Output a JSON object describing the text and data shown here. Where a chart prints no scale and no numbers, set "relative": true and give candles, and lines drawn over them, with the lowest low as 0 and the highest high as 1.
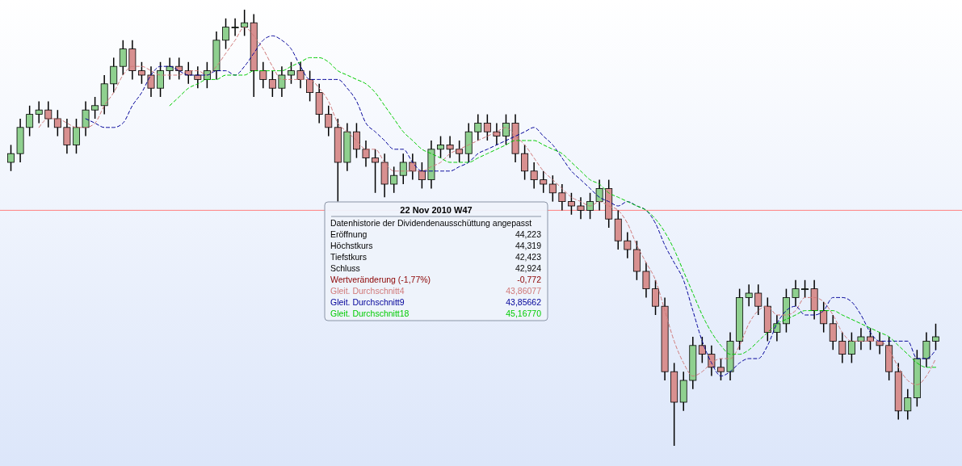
{
  "chart_data": {
    "type": "candlestick",
    "relative": true,
    "line_style": "dashed",
    "categories": [
      null,
      null,
      null,
      null,
      null,
      null,
      null,
      null,
      null,
      null,
      null,
      null,
      null,
      null,
      null,
      null,
      null,
      null,
      null,
      null,
      null,
      null,
      null,
      null,
      null,
      null,
      null,
      null,
      null,
      null,
      null,
      null,
      null,
      null,
      null,
      null,
      null,
      null,
      null,
      null,
      null,
      null,
      null,
      null,
      null,
      null,
      null,
      null,
      null,
      null,
      null,
      null,
      null,
      null,
      null,
      null,
      null,
      null,
      null,
      null,
      null,
      null,
      null,
      null,
      null,
      null,
      null,
      null,
      null,
      null,
      null,
      null,
      null,
      null,
      null,
      null,
      null,
      null,
      null,
      null,
      null,
      null,
      null,
      null,
      null,
      null,
      null,
      null,
      null,
      null,
      null,
      null,
      null,
      null,
      null,
      null,
      null,
      null,
      null,
      null
    ],
    "ohlc": [
      [
        0.65,
        0.69,
        0.63,
        0.67
      ],
      [
        0.67,
        0.75,
        0.65,
        0.73
      ],
      [
        0.73,
        0.78,
        0.71,
        0.76
      ],
      [
        0.76,
        0.79,
        0.74,
        0.77
      ],
      [
        0.77,
        0.79,
        0.73,
        0.75
      ],
      [
        0.75,
        0.77,
        0.71,
        0.73
      ],
      [
        0.73,
        0.75,
        0.67,
        0.69
      ],
      [
        0.69,
        0.75,
        0.67,
        0.73
      ],
      [
        0.73,
        0.79,
        0.71,
        0.77
      ],
      [
        0.77,
        0.8,
        0.75,
        0.78
      ],
      [
        0.78,
        0.85,
        0.76,
        0.83
      ],
      [
        0.83,
        0.89,
        0.81,
        0.87
      ],
      [
        0.87,
        0.93,
        0.85,
        0.91
      ],
      [
        0.91,
        0.93,
        0.84,
        0.86
      ],
      [
        0.86,
        0.88,
        0.83,
        0.85
      ],
      [
        0.85,
        0.87,
        0.8,
        0.82
      ],
      [
        0.82,
        0.88,
        0.8,
        0.86
      ],
      [
        0.86,
        0.89,
        0.84,
        0.87
      ],
      [
        0.87,
        0.89,
        0.84,
        0.86
      ],
      [
        0.86,
        0.88,
        0.83,
        0.85
      ],
      [
        0.85,
        0.87,
        0.82,
        0.84
      ],
      [
        0.84,
        0.88,
        0.82,
        0.86
      ],
      [
        0.86,
        0.95,
        0.84,
        0.93
      ],
      [
        0.93,
        0.98,
        0.91,
        0.96
      ],
      [
        0.96,
        0.98,
        0.94,
        0.96
      ],
      [
        0.96,
        1.0,
        0.94,
        0.97
      ],
      [
        0.97,
        0.99,
        0.8,
        0.86
      ],
      [
        0.86,
        0.88,
        0.82,
        0.84
      ],
      [
        0.84,
        0.86,
        0.8,
        0.82
      ],
      [
        0.82,
        0.87,
        0.8,
        0.85
      ],
      [
        0.85,
        0.88,
        0.83,
        0.86
      ],
      [
        0.86,
        0.88,
        0.82,
        0.84
      ],
      [
        0.84,
        0.86,
        0.79,
        0.81
      ],
      [
        0.81,
        0.83,
        0.74,
        0.76
      ],
      [
        0.76,
        0.78,
        0.71,
        0.73
      ],
      [
        0.73,
        0.75,
        0.56,
        0.65
      ],
      [
        0.65,
        0.74,
        0.63,
        0.72
      ],
      [
        0.72,
        0.74,
        0.66,
        0.68
      ],
      [
        0.68,
        0.7,
        0.64,
        0.66
      ],
      [
        0.66,
        0.68,
        0.58,
        0.65
      ],
      [
        0.65,
        0.67,
        0.57,
        0.6
      ],
      [
        0.6,
        0.64,
        0.58,
        0.62
      ],
      [
        0.62,
        0.67,
        0.6,
        0.65
      ],
      [
        0.65,
        0.67,
        0.61,
        0.63
      ],
      [
        0.63,
        0.65,
        0.59,
        0.61
      ],
      [
        0.61,
        0.7,
        0.59,
        0.68
      ],
      [
        0.68,
        0.71,
        0.66,
        0.69
      ],
      [
        0.69,
        0.71,
        0.66,
        0.68
      ],
      [
        0.68,
        0.7,
        0.65,
        0.67
      ],
      [
        0.67,
        0.74,
        0.65,
        0.72
      ],
      [
        0.72,
        0.76,
        0.7,
        0.74
      ],
      [
        0.74,
        0.76,
        0.7,
        0.72
      ],
      [
        0.72,
        0.74,
        0.69,
        0.71
      ],
      [
        0.71,
        0.76,
        0.69,
        0.74
      ],
      [
        0.74,
        0.76,
        0.65,
        0.67
      ],
      [
        0.67,
        0.69,
        0.61,
        0.63
      ],
      [
        0.63,
        0.65,
        0.59,
        0.61
      ],
      [
        0.61,
        0.63,
        0.58,
        0.6
      ],
      [
        0.6,
        0.62,
        0.56,
        0.58
      ],
      [
        0.58,
        0.6,
        0.54,
        0.56
      ],
      [
        0.56,
        0.58,
        0.53,
        0.55
      ],
      [
        0.55,
        0.57,
        0.52,
        0.54
      ],
      [
        0.54,
        0.58,
        0.52,
        0.56
      ],
      [
        0.56,
        0.61,
        0.54,
        0.59
      ],
      [
        0.59,
        0.61,
        0.5,
        0.52
      ],
      [
        0.52,
        0.54,
        0.45,
        0.47
      ],
      [
        0.47,
        0.49,
        0.43,
        0.45
      ],
      [
        0.45,
        0.47,
        0.38,
        0.4
      ],
      [
        0.4,
        0.42,
        0.34,
        0.36
      ],
      [
        0.36,
        0.38,
        0.3,
        0.32
      ],
      [
        0.32,
        0.34,
        0.15,
        0.17
      ],
      [
        0.17,
        0.19,
        0.0,
        0.1
      ],
      [
        0.1,
        0.17,
        0.08,
        0.15
      ],
      [
        0.15,
        0.25,
        0.13,
        0.23
      ],
      [
        0.23,
        0.25,
        0.19,
        0.21
      ],
      [
        0.21,
        0.23,
        0.16,
        0.18
      ],
      [
        0.18,
        0.2,
        0.15,
        0.17
      ],
      [
        0.17,
        0.26,
        0.15,
        0.24
      ],
      [
        0.24,
        0.36,
        0.22,
        0.34
      ],
      [
        0.34,
        0.37,
        0.32,
        0.35
      ],
      [
        0.35,
        0.37,
        0.3,
        0.32
      ],
      [
        0.32,
        0.34,
        0.24,
        0.26
      ],
      [
        0.26,
        0.3,
        0.24,
        0.28
      ],
      [
        0.28,
        0.36,
        0.26,
        0.34
      ],
      [
        0.34,
        0.38,
        0.32,
        0.36
      ],
      [
        0.36,
        0.38,
        0.34,
        0.36
      ],
      [
        0.36,
        0.38,
        0.29,
        0.31
      ],
      [
        0.31,
        0.33,
        0.26,
        0.28
      ],
      [
        0.28,
        0.3,
        0.22,
        0.24
      ],
      [
        0.24,
        0.26,
        0.19,
        0.21
      ],
      [
        0.21,
        0.26,
        0.19,
        0.24
      ],
      [
        0.24,
        0.27,
        0.22,
        0.25
      ],
      [
        0.25,
        0.27,
        0.22,
        0.24
      ],
      [
        0.24,
        0.26,
        0.21,
        0.23
      ],
      [
        0.23,
        0.25,
        0.15,
        0.17
      ],
      [
        0.17,
        0.19,
        0.06,
        0.08
      ],
      [
        0.08,
        0.13,
        0.06,
        0.11
      ],
      [
        0.11,
        0.22,
        0.09,
        0.2
      ],
      [
        0.2,
        0.26,
        0.18,
        0.24
      ],
      [
        0.24,
        0.28,
        0.22,
        0.25
      ]
    ],
    "series": [
      {
        "type": "line",
        "name": "Gleit. Durchschnitt4",
        "color": "#d07878",
        "values": [
          null,
          null,
          null,
          0.73,
          0.75,
          0.75,
          0.74,
          0.73,
          0.73,
          0.74,
          0.78,
          0.81,
          0.85,
          0.87,
          0.87,
          0.86,
          0.85,
          0.85,
          0.85,
          0.86,
          0.86,
          0.85,
          0.87,
          0.9,
          0.93,
          0.96,
          0.94,
          0.91,
          0.87,
          0.84,
          0.84,
          0.84,
          0.84,
          0.82,
          0.79,
          0.74,
          0.72,
          0.7,
          0.68,
          0.68,
          0.65,
          0.63,
          0.63,
          0.63,
          0.63,
          0.64,
          0.65,
          0.67,
          0.68,
          0.69,
          0.7,
          0.71,
          0.72,
          0.73,
          0.71,
          0.69,
          0.66,
          0.63,
          0.61,
          0.59,
          0.57,
          0.56,
          0.55,
          0.56,
          0.55,
          0.54,
          0.51,
          0.46,
          0.42,
          0.38,
          0.31,
          0.24,
          0.19,
          0.16,
          0.17,
          0.19,
          0.2,
          0.2,
          0.23,
          0.28,
          0.31,
          0.32,
          0.3,
          0.3,
          0.31,
          0.34,
          0.34,
          0.33,
          0.3,
          0.26,
          0.24,
          0.24,
          0.24,
          0.24,
          0.22,
          0.18,
          0.15,
          0.14,
          0.16,
          0.2
        ]
      },
      {
        "type": "line",
        "name": "Gleit. Durchschnitt9",
        "color": "#000099",
        "values": [
          null,
          null,
          null,
          null,
          null,
          null,
          null,
          null,
          0.75,
          0.74,
          0.73,
          0.73,
          0.74,
          0.78,
          0.81,
          0.85,
          0.87,
          0.87,
          0.86,
          0.85,
          0.85,
          0.85,
          0.86,
          0.86,
          0.85,
          0.87,
          0.9,
          0.93,
          0.94,
          0.93,
          0.91,
          0.87,
          0.84,
          0.84,
          0.84,
          0.84,
          0.82,
          0.79,
          0.74,
          0.72,
          0.7,
          0.68,
          0.68,
          0.65,
          0.63,
          0.63,
          0.63,
          0.63,
          0.64,
          0.65,
          0.67,
          0.68,
          0.69,
          0.7,
          0.71,
          0.72,
          0.73,
          0.71,
          0.69,
          0.66,
          0.63,
          0.61,
          0.59,
          0.57,
          0.56,
          0.55,
          0.56,
          0.55,
          0.54,
          0.51,
          0.46,
          0.42,
          0.38,
          0.31,
          0.24,
          0.19,
          0.16,
          0.17,
          0.19,
          0.2,
          0.2,
          0.23,
          0.28,
          0.31,
          0.32,
          0.3,
          0.3,
          0.31,
          0.34,
          0.34,
          0.33,
          0.3,
          0.26,
          0.24,
          0.24,
          0.24,
          0.24,
          0.2,
          0.2,
          0.22
        ]
      },
      {
        "type": "line",
        "name": "Gleit. Durchschnitt18",
        "color": "#00cc00",
        "values": [
          null,
          null,
          null,
          null,
          null,
          null,
          null,
          null,
          null,
          null,
          null,
          null,
          null,
          null,
          null,
          null,
          null,
          0.78,
          0.8,
          0.82,
          0.83,
          0.84,
          0.84,
          0.85,
          0.85,
          0.85,
          0.86,
          0.86,
          0.86,
          0.86,
          0.87,
          0.88,
          0.89,
          0.89,
          0.88,
          0.86,
          0.85,
          0.84,
          0.83,
          0.81,
          0.78,
          0.75,
          0.72,
          0.7,
          0.68,
          0.67,
          0.66,
          0.65,
          0.65,
          0.65,
          0.66,
          0.67,
          0.68,
          0.69,
          0.7,
          0.7,
          0.7,
          0.69,
          0.68,
          0.67,
          0.65,
          0.63,
          0.61,
          0.6,
          0.58,
          0.57,
          0.56,
          0.55,
          0.54,
          0.52,
          0.49,
          0.45,
          0.4,
          0.35,
          0.3,
          0.26,
          0.23,
          0.21,
          0.21,
          0.22,
          0.24,
          0.26,
          0.28,
          0.29,
          0.3,
          0.31,
          0.31,
          0.31,
          0.31,
          0.3,
          0.29,
          0.28,
          0.27,
          0.26,
          0.25,
          0.23,
          0.21,
          0.19,
          0.18,
          0.18
        ]
      }
    ],
    "ref_lines": [
      {
        "axis": "y",
        "value": 0.54,
        "color": "#ff8080"
      }
    ],
    "annotations": [
      "22 Nov 2010 W47",
      "Datenhistorie der Dividendenausschüttung angepasst",
      "Eröffnung",
      "44,223",
      "Höchstkurs",
      "44,319",
      "Tiefstkurs",
      "42,423",
      "Schluss",
      "42,924",
      "Wertveränderung (-1,77%)",
      "-0,772",
      "43,86077",
      "43,85662",
      "45,16770"
    ]
  }
}
